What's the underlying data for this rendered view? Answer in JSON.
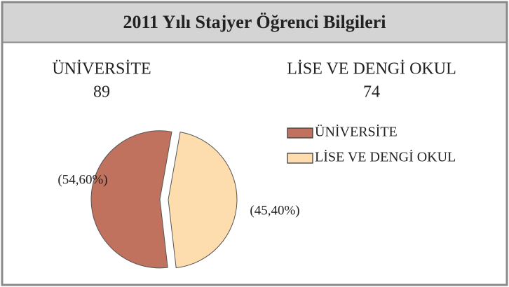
{
  "chart_data": {
    "type": "pie",
    "title": "2011 Yılı Stajyer Öğrenci Bilgileri",
    "categories": [
      "ÜNİVERSİTE",
      "LİSE VE DENGİ OKUL"
    ],
    "counts": [
      89,
      74
    ],
    "values": [
      54.6,
      45.4
    ],
    "value_labels": [
      "(54,60%)",
      "(45,40%)"
    ],
    "colors": [
      "#c0725f",
      "#fddcad"
    ],
    "legend": "right"
  }
}
